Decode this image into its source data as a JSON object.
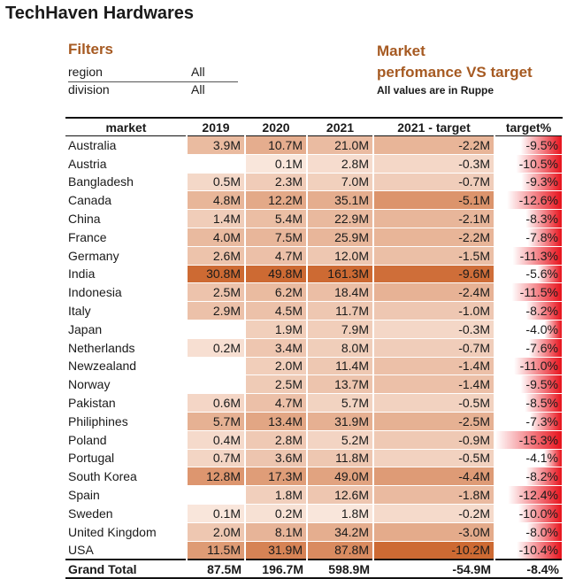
{
  "app_title": "TechHaven Hardwares",
  "filters": {
    "heading": "Filters",
    "items": [
      {
        "label": "region",
        "value": "All"
      },
      {
        "label": "division",
        "value": "All"
      }
    ]
  },
  "report": {
    "heading_line1": "Market",
    "heading_line2": "perfomance VS target",
    "note": "All values are in Ruppe"
  },
  "table": {
    "columns": [
      "market",
      "2019",
      "2020",
      "2021",
      "2021 - target",
      "target%"
    ],
    "rows": [
      {
        "market": "Australia",
        "y2019": "3.9M",
        "y2020": "10.7M",
        "y2021": "21.0M",
        "diff": "-2.2M",
        "pct": "-9.5%"
      },
      {
        "market": "Austria",
        "y2019": "",
        "y2020": "0.1M",
        "y2021": "2.8M",
        "diff": "-0.3M",
        "pct": "-10.5%"
      },
      {
        "market": "Bangladesh",
        "y2019": "0.5M",
        "y2020": "2.3M",
        "y2021": "7.0M",
        "diff": "-0.7M",
        "pct": "-9.3%"
      },
      {
        "market": "Canada",
        "y2019": "4.8M",
        "y2020": "12.2M",
        "y2021": "35.1M",
        "diff": "-5.1M",
        "pct": "-12.6%"
      },
      {
        "market": "China",
        "y2019": "1.4M",
        "y2020": "5.4M",
        "y2021": "22.9M",
        "diff": "-2.1M",
        "pct": "-8.3%"
      },
      {
        "market": "France",
        "y2019": "4.0M",
        "y2020": "7.5M",
        "y2021": "25.9M",
        "diff": "-2.2M",
        "pct": "-7.8%"
      },
      {
        "market": "Germany",
        "y2019": "2.6M",
        "y2020": "4.7M",
        "y2021": "12.0M",
        "diff": "-1.5M",
        "pct": "-11.3%"
      },
      {
        "market": "India",
        "y2019": "30.8M",
        "y2020": "49.8M",
        "y2021": "161.3M",
        "diff": "-9.6M",
        "pct": "-5.6%"
      },
      {
        "market": "Indonesia",
        "y2019": "2.5M",
        "y2020": "6.2M",
        "y2021": "18.4M",
        "diff": "-2.4M",
        "pct": "-11.5%"
      },
      {
        "market": "Italy",
        "y2019": "2.9M",
        "y2020": "4.5M",
        "y2021": "11.7M",
        "diff": "-1.0M",
        "pct": "-8.2%"
      },
      {
        "market": "Japan",
        "y2019": "",
        "y2020": "1.9M",
        "y2021": "7.9M",
        "diff": "-0.3M",
        "pct": "-4.0%"
      },
      {
        "market": "Netherlands",
        "y2019": "0.2M",
        "y2020": "3.4M",
        "y2021": "8.0M",
        "diff": "-0.7M",
        "pct": "-7.6%"
      },
      {
        "market": "Newzealand",
        "y2019": "",
        "y2020": "2.0M",
        "y2021": "11.4M",
        "diff": "-1.4M",
        "pct": "-11.0%"
      },
      {
        "market": "Norway",
        "y2019": "",
        "y2020": "2.5M",
        "y2021": "13.7M",
        "diff": "-1.4M",
        "pct": "-9.5%"
      },
      {
        "market": "Pakistan",
        "y2019": "0.6M",
        "y2020": "4.7M",
        "y2021": "5.7M",
        "diff": "-0.5M",
        "pct": "-8.5%"
      },
      {
        "market": "Philiphines",
        "y2019": "5.7M",
        "y2020": "13.4M",
        "y2021": "31.9M",
        "diff": "-2.5M",
        "pct": "-7.3%"
      },
      {
        "market": "Poland",
        "y2019": "0.4M",
        "y2020": "2.8M",
        "y2021": "5.2M",
        "diff": "-0.9M",
        "pct": "-15.3%"
      },
      {
        "market": "Portugal",
        "y2019": "0.7M",
        "y2020": "3.6M",
        "y2021": "11.8M",
        "diff": "-0.5M",
        "pct": "-4.1%"
      },
      {
        "market": "South Korea",
        "y2019": "12.8M",
        "y2020": "17.3M",
        "y2021": "49.0M",
        "diff": "-4.4M",
        "pct": "-8.2%"
      },
      {
        "market": "Spain",
        "y2019": "",
        "y2020": "1.8M",
        "y2021": "12.6M",
        "diff": "-1.8M",
        "pct": "-12.4%"
      },
      {
        "market": "Sweden",
        "y2019": "0.1M",
        "y2020": "0.2M",
        "y2021": "1.8M",
        "diff": "-0.2M",
        "pct": "-10.0%"
      },
      {
        "market": "United Kingdom",
        "y2019": "2.0M",
        "y2020": "8.1M",
        "y2021": "34.2M",
        "diff": "-3.0M",
        "pct": "-8.0%"
      },
      {
        "market": "USA",
        "y2019": "11.5M",
        "y2020": "31.9M",
        "y2021": "87.8M",
        "diff": "-10.2M",
        "pct": "-10.4%"
      }
    ],
    "total": {
      "market": "Grand Total",
      "y2019": "87.5M",
      "y2020": "196.7M",
      "y2021": "598.9M",
      "diff": "-54.9M",
      "pct": "-8.4%"
    }
  },
  "colors": {
    "heading_accent": "#a65a22",
    "heat_low": "#fdf1ea",
    "heat_high": "#cd6a33",
    "target_bar": "#e8121c"
  }
}
